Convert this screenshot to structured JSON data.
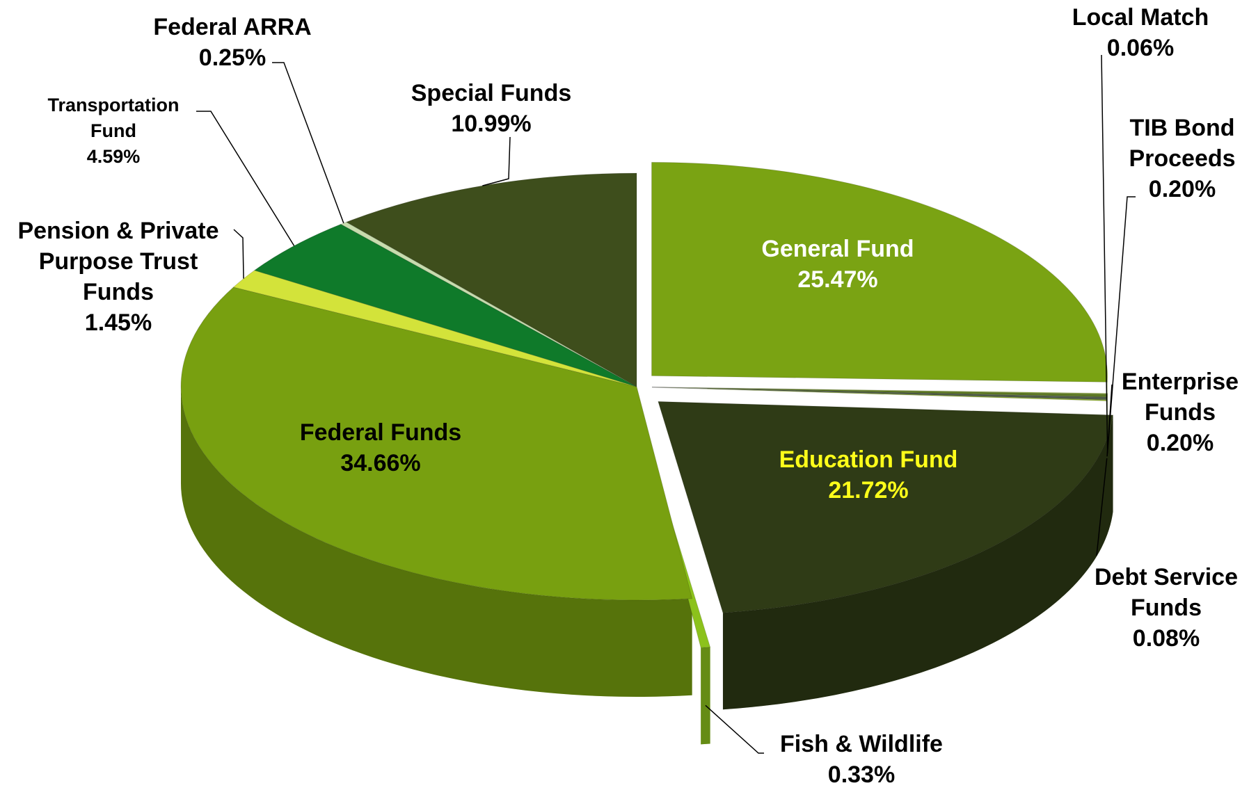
{
  "chart_data": {
    "type": "pie3d",
    "categories": [
      "General Fund",
      "Local Match",
      "TIB Bond Proceeds",
      "Enterprise Funds",
      "Debt Service Funds",
      "Education Fund",
      "Fish & Wildlife",
      "Federal Funds",
      "Pension & Private Purpose Trust Funds",
      "Transportation Fund",
      "Federal ARRA",
      "Special Funds"
    ],
    "values": [
      25.47,
      0.06,
      0.2,
      0.2,
      0.08,
      21.72,
      0.33,
      34.66,
      1.45,
      4.59,
      0.25,
      10.99
    ],
    "value_labels": [
      "25.47%",
      "0.06%",
      "0.20%",
      "0.20%",
      "0.08%",
      "21.72%",
      "0.33%",
      "34.66%",
      "1.45%",
      "4.59%",
      "0.25%",
      "10.99%"
    ],
    "colors": [
      "#7aa313",
      "#a3c44a",
      "#5d7a22",
      "#4f5d48",
      "#93b52e",
      "#2f3b16",
      "#8cc21c",
      "#78a010",
      "#d3e33a",
      "#0f7a2a",
      "#c8dcae",
      "#3e4e1c"
    ]
  }
}
